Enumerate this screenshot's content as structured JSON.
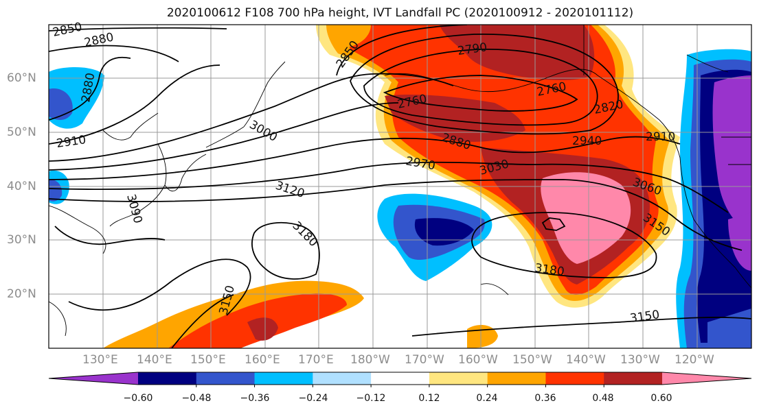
{
  "title": "2020100612 F108 700 hPa height, IVT Landfall PC (2020100912 - 2020101112)",
  "lat_labels": [
    "60°N",
    "50°N",
    "40°N",
    "30°N",
    "20°N"
  ],
  "lon_labels": [
    "130°E",
    "140°E",
    "150°E",
    "160°E",
    "170°E",
    "180°W",
    "170°W",
    "160°W",
    "150°W",
    "140°W",
    "130°W",
    "120°W"
  ],
  "contour_labels": [
    "2850",
    "2880",
    "2880",
    "2910",
    "2850",
    "2790",
    "2760",
    "2760",
    "2820",
    "3000",
    "2880",
    "2940",
    "2910",
    "2970",
    "3030",
    "3060",
    "3120",
    "3090",
    "3180",
    "3150",
    "3180",
    "3150",
    "3150"
  ],
  "colorbar": {
    "colors": [
      "#9933cc",
      "#000080",
      "#3355cc",
      "#00bfff",
      "#b0e0ff",
      "#ffffff",
      "#ffe680",
      "#ffa500",
      "#ff3300",
      "#b22222",
      "#ff88aa"
    ],
    "tick_labels": [
      "−0.60",
      "−0.48",
      "−0.36",
      "−0.24",
      "−0.12",
      "0.12",
      "0.24",
      "0.36",
      "0.48",
      "0.60"
    ]
  }
}
